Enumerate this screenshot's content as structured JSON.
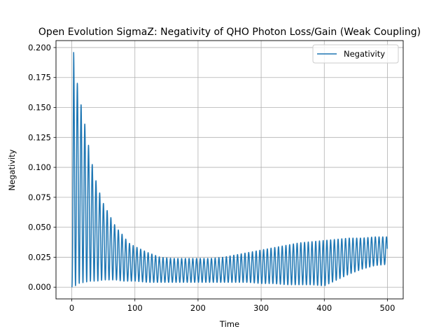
{
  "chart_data": {
    "type": "line",
    "title": "Open Evolution SigmaZ: Negativity of QHO Photon Loss/Gain (Weak Coupling)",
    "xlabel": "Time",
    "ylabel": "Negativity",
    "xlim": [
      -25,
      525
    ],
    "ylim": [
      -0.0098,
      0.2058
    ],
    "xticks": [
      "0",
      "100",
      "200",
      "300",
      "400",
      "500"
    ],
    "yticks": [
      "0.000",
      "0.025",
      "0.050",
      "0.075",
      "0.100",
      "0.125",
      "0.150",
      "0.175",
      "0.200"
    ],
    "grid": true,
    "legend": {
      "placement": "top-right",
      "entries": [
        "Negativity"
      ]
    },
    "series": [
      {
        "name": "Negativity",
        "color": "#1f77b4",
        "oscillation_period": 5.9,
        "t_range": [
          0,
          500
        ],
        "envelope_t": [
          0,
          3,
          10,
          20,
          30,
          40,
          50,
          60,
          70,
          80,
          90,
          100,
          120,
          140,
          160,
          180,
          200,
          220,
          240,
          260,
          280,
          300,
          320,
          340,
          360,
          380,
          400,
          420,
          440,
          460,
          480,
          500
        ],
        "envelope_max": [
          0.0,
          0.196,
          0.165,
          0.138,
          0.108,
          0.085,
          0.07,
          0.06,
          0.05,
          0.044,
          0.037,
          0.034,
          0.029,
          0.025,
          0.024,
          0.024,
          0.024,
          0.024,
          0.025,
          0.027,
          0.029,
          0.031,
          0.033,
          0.035,
          0.037,
          0.038,
          0.039,
          0.04,
          0.041,
          0.041,
          0.042,
          0.042
        ],
        "envelope_min": [
          0.0,
          0.0,
          0.003,
          0.004,
          0.005,
          0.005,
          0.006,
          0.006,
          0.006,
          0.005,
          0.005,
          0.005,
          0.004,
          0.004,
          0.004,
          0.004,
          0.004,
          0.004,
          0.004,
          0.004,
          0.004,
          0.003,
          0.003,
          0.002,
          0.002,
          0.002,
          0.001,
          0.006,
          0.011,
          0.015,
          0.018,
          0.019
        ]
      }
    ]
  }
}
